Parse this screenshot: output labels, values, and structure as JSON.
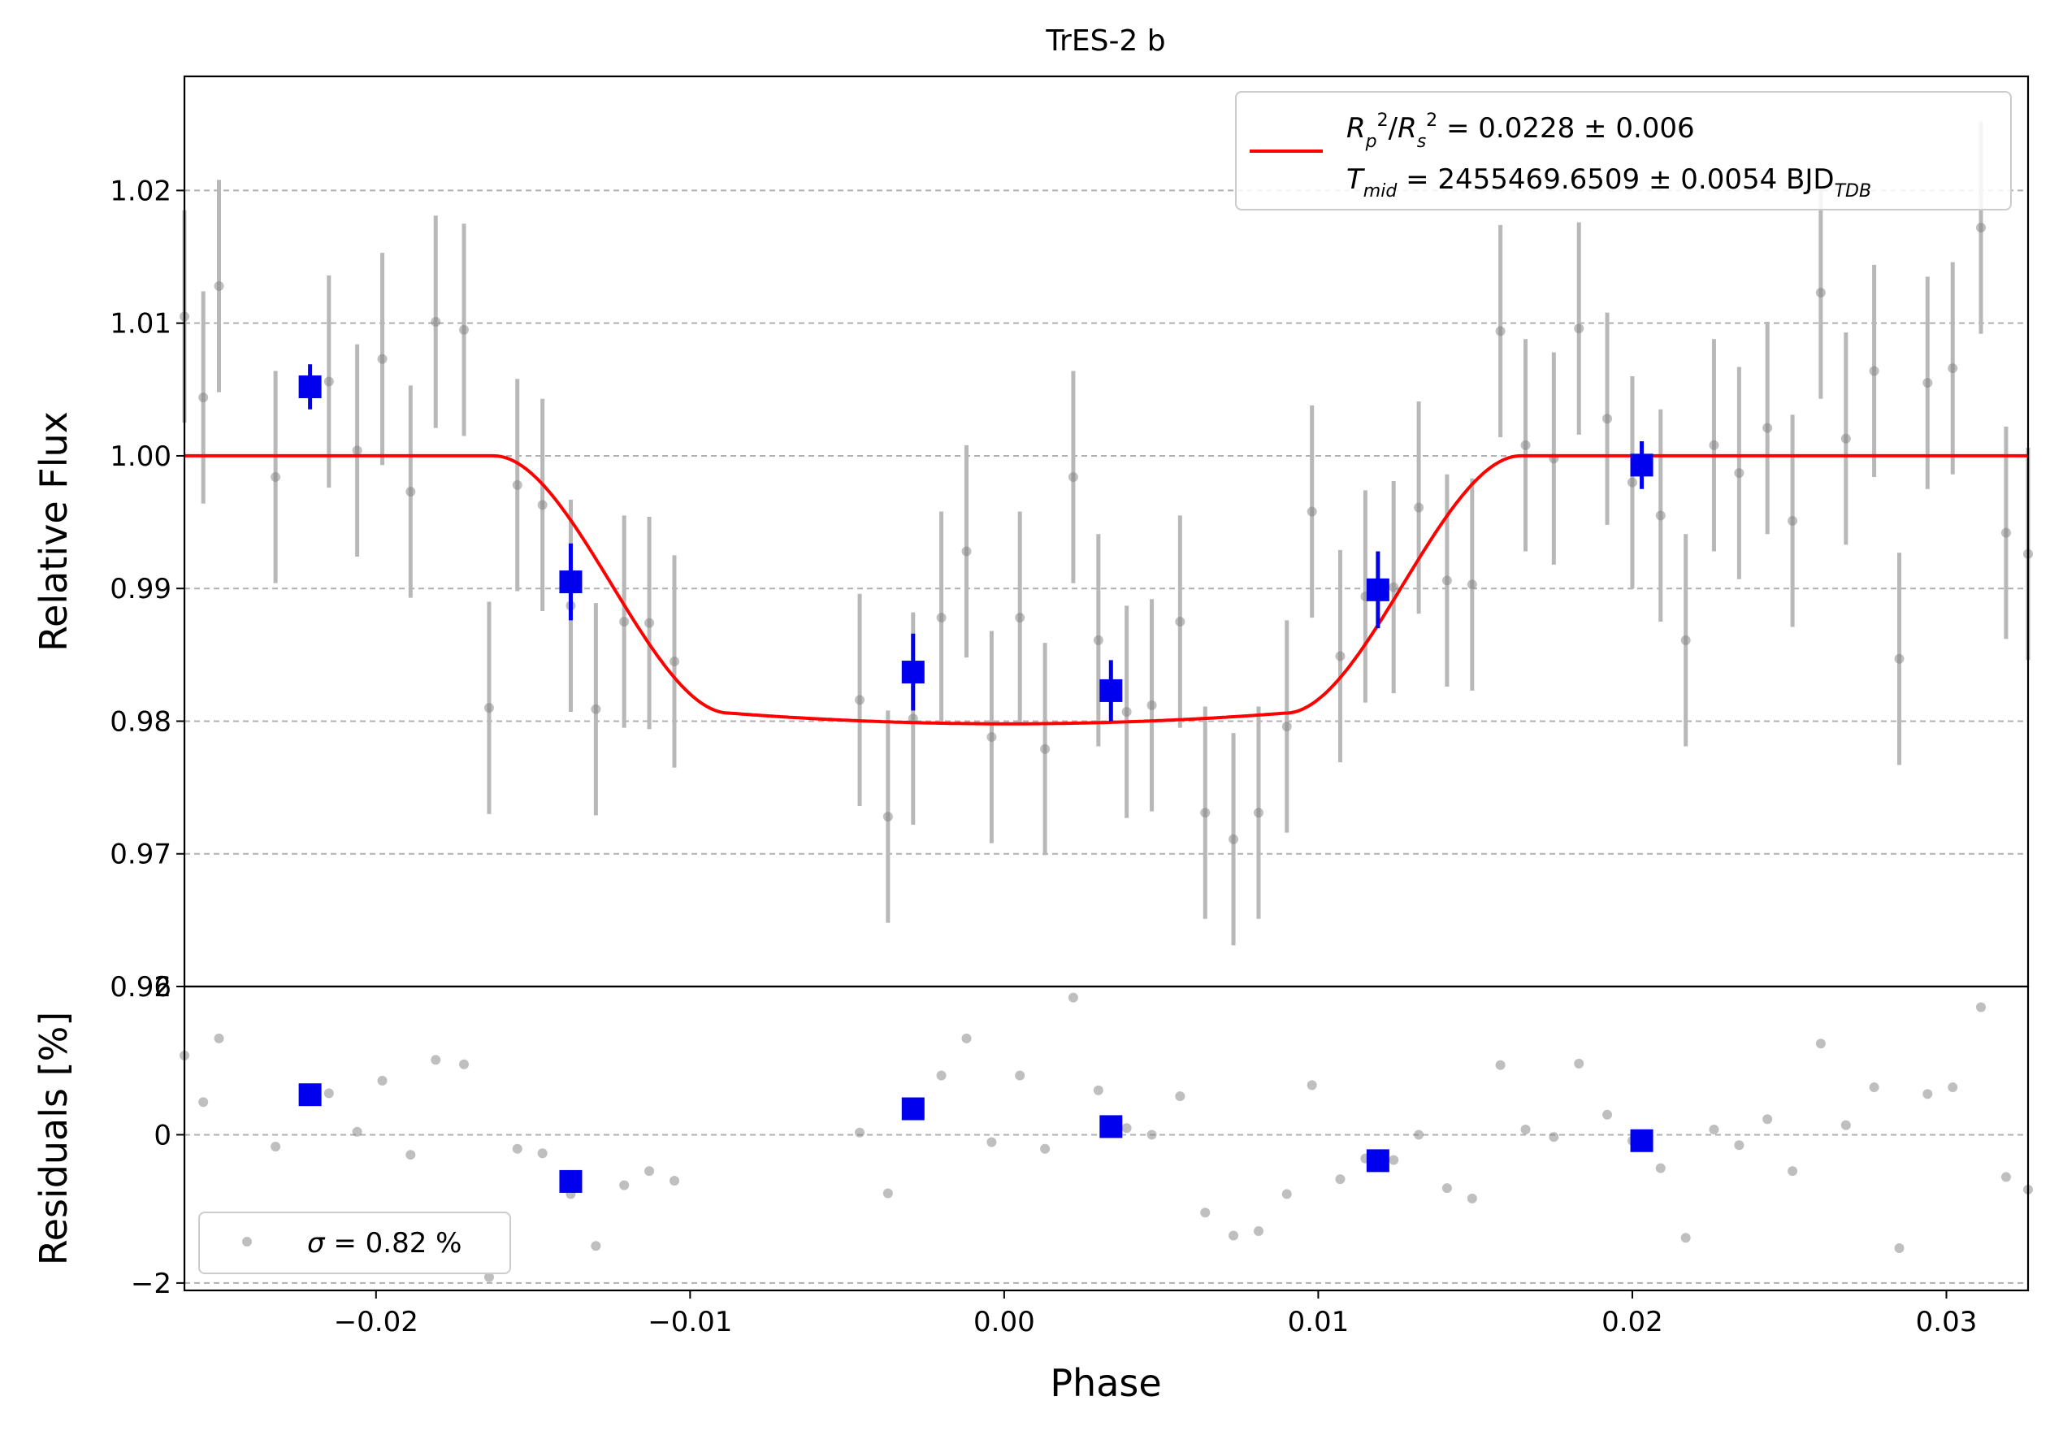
{
  "chart_data": {
    "title": "TrES-2 b",
    "xlabel": "Phase",
    "colors": {
      "raw": "#808080",
      "errorbar": "#b8b8b8",
      "binned": "#0000ee",
      "model": "#ff0000",
      "grid": "#b0b0b0"
    },
    "legend_top": {
      "position": "top-right",
      "line1": "R_p^2/R_s^2 = 0.0228 ± 0.006",
      "line2": "T_mid = 2455469.6509 ± 0.0054 BJD_TDB"
    },
    "legend_bottom": {
      "position": "bottom-left",
      "text": "σ = 0.82 %"
    },
    "xlim": [
      -0.0261,
      0.0326
    ],
    "xticks": [
      {
        "v": -0.02,
        "label": "−0.02"
      },
      {
        "v": -0.01,
        "label": "−0.01"
      },
      {
        "v": 0.0,
        "label": "0.00"
      },
      {
        "v": 0.01,
        "label": "0.01"
      },
      {
        "v": 0.02,
        "label": "0.02"
      },
      {
        "v": 0.03,
        "label": "0.03"
      }
    ],
    "top_panel": {
      "type": "scatter",
      "ylabel": "Relative Flux",
      "ylim": [
        0.96,
        1.0286
      ],
      "yticks": [
        {
          "v": 0.96,
          "label": "0.96"
        },
        {
          "v": 0.97,
          "label": "0.97"
        },
        {
          "v": 0.98,
          "label": "0.98"
        },
        {
          "v": 0.99,
          "label": "0.99"
        },
        {
          "v": 1.0,
          "label": "1.00"
        },
        {
          "v": 1.01,
          "label": "1.01"
        },
        {
          "v": 1.02,
          "label": "1.02"
        }
      ],
      "raw_points": [
        [
          -0.0261,
          1.0105,
          0.008
        ],
        [
          -0.0255,
          1.0044,
          0.008
        ],
        [
          -0.025,
          1.0128,
          0.008
        ],
        [
          -0.0232,
          0.9984,
          0.008
        ],
        [
          -0.0215,
          1.0056,
          0.008
        ],
        [
          -0.0206,
          1.0004,
          0.008
        ],
        [
          -0.0198,
          1.0073,
          0.008
        ],
        [
          -0.0189,
          0.9973,
          0.008
        ],
        [
          -0.0181,
          1.0101,
          0.008
        ],
        [
          -0.0172,
          1.0095,
          0.008
        ],
        [
          -0.0164,
          0.981,
          0.008
        ],
        [
          -0.0155,
          0.9978,
          0.008
        ],
        [
          -0.0147,
          0.9963,
          0.008
        ],
        [
          -0.0138,
          0.9887,
          0.008
        ],
        [
          -0.013,
          0.9809,
          0.008
        ],
        [
          -0.0121,
          0.9875,
          0.008
        ],
        [
          -0.0113,
          0.9874,
          0.008
        ],
        [
          -0.0105,
          0.9845,
          0.008
        ],
        [
          -0.0046,
          0.9816,
          0.008
        ],
        [
          -0.0037,
          0.9728,
          0.008
        ],
        [
          -0.0029,
          0.9802,
          0.008
        ],
        [
          -0.002,
          0.9878,
          0.008
        ],
        [
          -0.0012,
          0.9928,
          0.008
        ],
        [
          -0.0004,
          0.9788,
          0.008
        ],
        [
          0.0005,
          0.9878,
          0.008
        ],
        [
          0.0013,
          0.9779,
          0.008
        ],
        [
          0.0022,
          0.9984,
          0.008
        ],
        [
          0.003,
          0.9861,
          0.008
        ],
        [
          0.0039,
          0.9807,
          0.008
        ],
        [
          0.0047,
          0.9812,
          0.008
        ],
        [
          0.0056,
          0.9875,
          0.008
        ],
        [
          0.0064,
          0.9731,
          0.008
        ],
        [
          0.0073,
          0.9711,
          0.008
        ],
        [
          0.0081,
          0.9731,
          0.008
        ],
        [
          0.009,
          0.9796,
          0.008
        ],
        [
          0.0098,
          0.9958,
          0.008
        ],
        [
          0.0107,
          0.9849,
          0.008
        ],
        [
          0.0115,
          0.9894,
          0.008
        ],
        [
          0.0124,
          0.9901,
          0.008
        ],
        [
          0.0132,
          0.9961,
          0.008
        ],
        [
          0.0141,
          0.9906,
          0.008
        ],
        [
          0.0149,
          0.9903,
          0.008
        ],
        [
          0.0158,
          1.0094,
          0.008
        ],
        [
          0.0166,
          1.0008,
          0.008
        ],
        [
          0.0175,
          0.9998,
          0.008
        ],
        [
          0.0183,
          1.0096,
          0.008
        ],
        [
          0.0192,
          1.0028,
          0.008
        ],
        [
          0.02,
          0.998,
          0.008
        ],
        [
          0.0209,
          0.9955,
          0.008
        ],
        [
          0.0217,
          0.9861,
          0.008
        ],
        [
          0.0226,
          1.0008,
          0.008
        ],
        [
          0.0234,
          0.9987,
          0.008
        ],
        [
          0.0243,
          1.0021,
          0.008
        ],
        [
          0.0251,
          0.9951,
          0.008
        ],
        [
          0.026,
          1.0123,
          0.008
        ],
        [
          0.0268,
          1.0013,
          0.008
        ],
        [
          0.0277,
          1.0064,
          0.008
        ],
        [
          0.0285,
          0.9847,
          0.008
        ],
        [
          0.0294,
          1.0055,
          0.008
        ],
        [
          0.0302,
          1.0066,
          0.008
        ],
        [
          0.0311,
          1.0172,
          0.008
        ],
        [
          0.0319,
          0.9942,
          0.008
        ],
        [
          0.0326,
          0.9926,
          0.008
        ]
      ],
      "binned_points": [
        [
          -0.0221,
          1.0052,
          0.0017
        ],
        [
          -0.0138,
          0.9905,
          0.0029
        ],
        [
          -0.0029,
          0.9837,
          0.0029
        ],
        [
          0.0034,
          0.9823,
          0.0023
        ],
        [
          0.0119,
          0.9899,
          0.0029
        ],
        [
          0.0203,
          0.9993,
          0.0018
        ]
      ],
      "model": {
        "baseline": 1.0,
        "depth": 0.0202,
        "t14": 0.0327,
        "t12": 0.0075,
        "center": 0.0001
      }
    },
    "bottom_panel": {
      "type": "scatter",
      "ylabel": "Residuals [%]",
      "ylim": [
        -2.1,
        2.0
      ],
      "yticks": [
        {
          "v": -2,
          "label": "−2"
        },
        {
          "v": 0,
          "label": "0"
        },
        {
          "v": 2,
          "label": "2"
        }
      ],
      "raw_points": [
        [
          -0.0261,
          1.07
        ],
        [
          -0.0255,
          0.44
        ],
        [
          -0.025,
          1.3
        ],
        [
          -0.0232,
          -0.16
        ],
        [
          -0.0215,
          0.56
        ],
        [
          -0.0206,
          0.04
        ],
        [
          -0.0198,
          0.73
        ],
        [
          -0.0189,
          -0.27
        ],
        [
          -0.0181,
          1.01
        ],
        [
          -0.0172,
          0.95
        ],
        [
          -0.0164,
          -1.92
        ],
        [
          -0.0155,
          -0.19
        ],
        [
          -0.0147,
          -0.25
        ],
        [
          -0.0138,
          -0.8
        ],
        [
          -0.013,
          -1.5
        ],
        [
          -0.0121,
          -0.68
        ],
        [
          -0.0113,
          -0.49
        ],
        [
          -0.0105,
          -0.62
        ],
        [
          -0.0046,
          0.03
        ],
        [
          -0.0037,
          -0.79
        ],
        [
          -0.0029,
          0.27
        ],
        [
          -0.002,
          0.8
        ],
        [
          -0.0012,
          1.3
        ],
        [
          -0.0004,
          -0.1
        ],
        [
          0.0005,
          0.8
        ],
        [
          0.0013,
          -0.19
        ],
        [
          0.0022,
          1.85
        ],
        [
          0.003,
          0.6
        ],
        [
          0.0039,
          0.09
        ],
        [
          0.0047,
          0.0
        ],
        [
          0.0056,
          0.52
        ],
        [
          0.0064,
          -1.05
        ],
        [
          0.0073,
          -1.36
        ],
        [
          0.0081,
          -1.3
        ],
        [
          0.009,
          -0.8
        ],
        [
          0.0098,
          0.67
        ],
        [
          0.0107,
          -0.6
        ],
        [
          0.0115,
          -0.32
        ],
        [
          0.0124,
          -0.34
        ],
        [
          0.0132,
          0.0
        ],
        [
          0.0141,
          -0.72
        ],
        [
          0.0149,
          -0.86
        ],
        [
          0.0158,
          0.94
        ],
        [
          0.0166,
          0.07
        ],
        [
          0.0175,
          -0.03
        ],
        [
          0.0183,
          0.96
        ],
        [
          0.0192,
          0.27
        ],
        [
          0.02,
          -0.08
        ],
        [
          0.0209,
          -0.45
        ],
        [
          0.0217,
          -1.39
        ],
        [
          0.0226,
          0.07
        ],
        [
          0.0234,
          -0.14
        ],
        [
          0.0243,
          0.21
        ],
        [
          0.0251,
          -0.49
        ],
        [
          0.026,
          1.23
        ],
        [
          0.0268,
          0.13
        ],
        [
          0.0277,
          0.64
        ],
        [
          0.0285,
          -1.53
        ],
        [
          0.0294,
          0.55
        ],
        [
          0.0302,
          0.64
        ],
        [
          0.0311,
          1.72
        ],
        [
          0.0319,
          -0.57
        ],
        [
          0.0326,
          -0.74
        ]
      ],
      "binned_points": [
        [
          -0.0221,
          0.54
        ],
        [
          -0.0138,
          -0.63
        ],
        [
          -0.0029,
          0.35
        ],
        [
          0.0034,
          0.11
        ],
        [
          0.0119,
          -0.35
        ],
        [
          0.0203,
          -0.08
        ]
      ]
    }
  }
}
